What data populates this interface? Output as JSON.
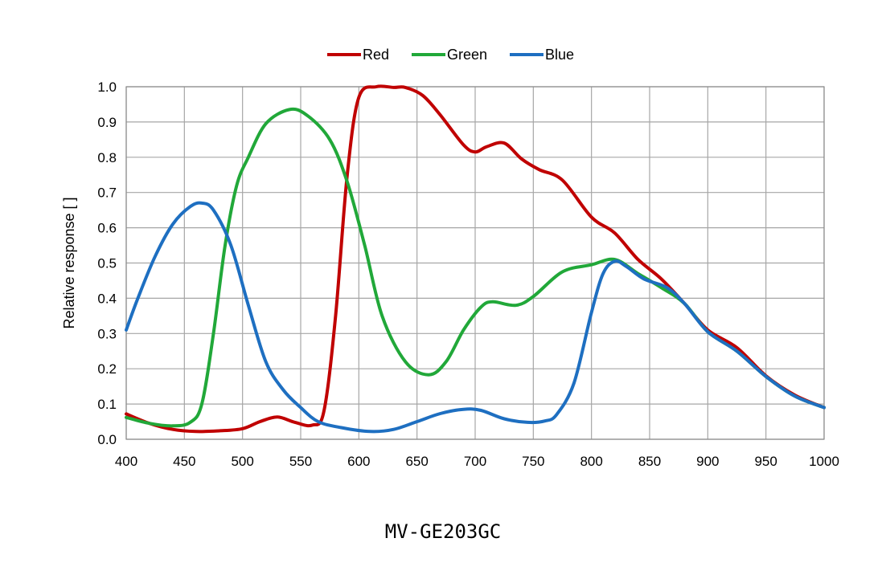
{
  "chart_data": {
    "type": "line",
    "title": "",
    "xlabel": "",
    "ylabel": "Relative response [ ]",
    "xlim": [
      400,
      1000
    ],
    "ylim": [
      0,
      1.0
    ],
    "x_ticks": [
      "400",
      "450",
      "500",
      "550",
      "600",
      "650",
      "700",
      "750",
      "800",
      "850",
      "900",
      "950",
      "1000"
    ],
    "y_ticks": [
      "0.0",
      "0.1",
      "0.2",
      "0.3",
      "0.4",
      "0.5",
      "0.6",
      "0.7",
      "0.8",
      "0.9",
      "1.0"
    ],
    "grid": true,
    "legend_position": "top-center",
    "series": [
      {
        "name": "Red",
        "color": "#c00000",
        "points": [
          [
            400,
            0.072
          ],
          [
            420,
            0.045
          ],
          [
            440,
            0.028
          ],
          [
            460,
            0.022
          ],
          [
            480,
            0.024
          ],
          [
            500,
            0.03
          ],
          [
            515,
            0.05
          ],
          [
            530,
            0.063
          ],
          [
            545,
            0.048
          ],
          [
            560,
            0.04
          ],
          [
            570,
            0.08
          ],
          [
            580,
            0.35
          ],
          [
            590,
            0.75
          ],
          [
            600,
            0.97
          ],
          [
            615,
            1.0
          ],
          [
            630,
            0.998
          ],
          [
            640,
            0.998
          ],
          [
            655,
            0.975
          ],
          [
            670,
            0.92
          ],
          [
            690,
            0.835
          ],
          [
            700,
            0.815
          ],
          [
            710,
            0.83
          ],
          [
            725,
            0.84
          ],
          [
            740,
            0.795
          ],
          [
            755,
            0.765
          ],
          [
            775,
            0.735
          ],
          [
            800,
            0.63
          ],
          [
            820,
            0.585
          ],
          [
            840,
            0.51
          ],
          [
            860,
            0.455
          ],
          [
            880,
            0.385
          ],
          [
            900,
            0.31
          ],
          [
            925,
            0.26
          ],
          [
            950,
            0.18
          ],
          [
            975,
            0.125
          ],
          [
            1000,
            0.09
          ]
        ]
      },
      {
        "name": "Green",
        "color": "#21a839",
        "points": [
          [
            400,
            0.062
          ],
          [
            420,
            0.045
          ],
          [
            440,
            0.038
          ],
          [
            455,
            0.048
          ],
          [
            465,
            0.1
          ],
          [
            475,
            0.3
          ],
          [
            485,
            0.55
          ],
          [
            495,
            0.72
          ],
          [
            505,
            0.8
          ],
          [
            520,
            0.895
          ],
          [
            540,
            0.935
          ],
          [
            555,
            0.92
          ],
          [
            575,
            0.85
          ],
          [
            590,
            0.73
          ],
          [
            605,
            0.55
          ],
          [
            620,
            0.35
          ],
          [
            640,
            0.22
          ],
          [
            660,
            0.183
          ],
          [
            675,
            0.22
          ],
          [
            690,
            0.31
          ],
          [
            705,
            0.375
          ],
          [
            715,
            0.39
          ],
          [
            735,
            0.38
          ],
          [
            750,
            0.405
          ],
          [
            775,
            0.475
          ],
          [
            800,
            0.495
          ],
          [
            820,
            0.51
          ],
          [
            840,
            0.47
          ],
          [
            860,
            0.43
          ],
          [
            880,
            0.385
          ],
          [
            900,
            0.305
          ],
          [
            925,
            0.25
          ],
          [
            950,
            0.178
          ],
          [
            975,
            0.122
          ],
          [
            1000,
            0.09
          ]
        ]
      },
      {
        "name": "Blue",
        "color": "#1e6fc1",
        "points": [
          [
            400,
            0.31
          ],
          [
            410,
            0.4
          ],
          [
            425,
            0.52
          ],
          [
            440,
            0.61
          ],
          [
            455,
            0.66
          ],
          [
            465,
            0.67
          ],
          [
            475,
            0.65
          ],
          [
            490,
            0.55
          ],
          [
            505,
            0.38
          ],
          [
            520,
            0.22
          ],
          [
            535,
            0.14
          ],
          [
            550,
            0.09
          ],
          [
            565,
            0.05
          ],
          [
            585,
            0.033
          ],
          [
            610,
            0.022
          ],
          [
            630,
            0.028
          ],
          [
            650,
            0.05
          ],
          [
            670,
            0.073
          ],
          [
            690,
            0.085
          ],
          [
            705,
            0.082
          ],
          [
            725,
            0.058
          ],
          [
            745,
            0.048
          ],
          [
            760,
            0.052
          ],
          [
            770,
            0.07
          ],
          [
            785,
            0.16
          ],
          [
            800,
            0.36
          ],
          [
            810,
            0.47
          ],
          [
            820,
            0.505
          ],
          [
            830,
            0.49
          ],
          [
            845,
            0.455
          ],
          [
            865,
            0.43
          ],
          [
            880,
            0.385
          ],
          [
            900,
            0.305
          ],
          [
            925,
            0.25
          ],
          [
            950,
            0.178
          ],
          [
            975,
            0.122
          ],
          [
            1000,
            0.09
          ]
        ]
      }
    ]
  },
  "caption": "MV-GE203GC"
}
